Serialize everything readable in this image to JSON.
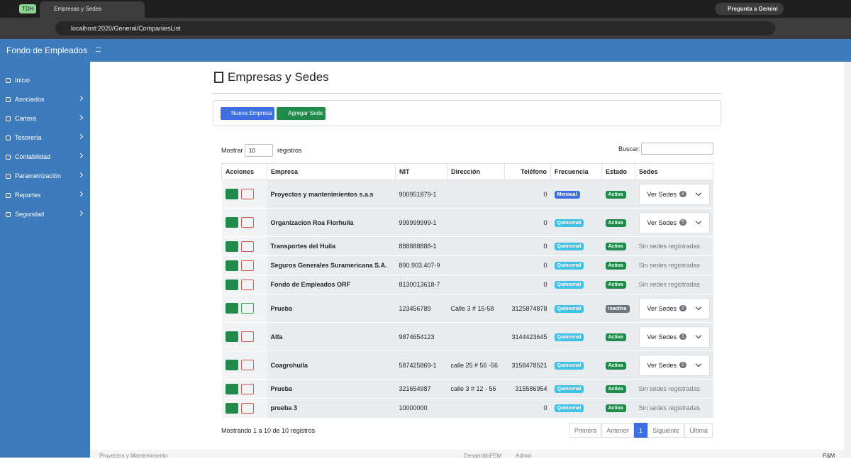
{
  "browser": {
    "tab_group": "TDH",
    "tab_title": "Empresas y Sedes",
    "gemini": "Pregunta a Gemini",
    "url": "localhost:2020/General/CompaniesList"
  },
  "app": {
    "brand": "Fondo de Empleados"
  },
  "sidebar": {
    "items": [
      "Inicio",
      "Asociados",
      "Cartera",
      "Tesorería",
      "Contabilidad",
      "Parametrización",
      "Reportes",
      "Seguridad"
    ]
  },
  "page": {
    "title": "Empresas y Sedes",
    "buttons": [
      "Nueva Empresa",
      "Agregar Sede"
    ],
    "length": {
      "prefix": "Mostrar",
      "value": "10",
      "suffix": "registros"
    },
    "search": "Buscar:"
  },
  "table": {
    "headers": [
      "Acciones",
      "Empresa",
      "NIT",
      "Dirección",
      "Teléfono",
      "Frecuencia",
      "Estado",
      "Sedes"
    ],
    "rows": [
      {
        "empresa": "Proyectos y mantenimientos s.a.s",
        "nit": "900951879-1",
        "telefono": "0",
        "frecuencia": "Mensual",
        "estado": "Activa",
        "sedes": {
          "button": "Ver Sedes",
          "count": "2"
        }
      },
      {
        "empresa": "Organizacion Roa Florhuila",
        "nit": "999999999-1",
        "telefono": "0",
        "frecuencia": "Quincenal",
        "estado": "Activa",
        "sedes": {
          "button": "Ver Sedes",
          "count": "5"
        }
      },
      {
        "empresa": "Transportes del Huila",
        "nit": "888888888-1",
        "telefono": "0",
        "frecuencia": "Quincenal",
        "estado": "Activa",
        "sedes": {
          "text": "Sin sedes registradas"
        }
      },
      {
        "empresa": "Seguros Generales Suramericana S.A.",
        "nit": "890.903.407-9",
        "telefono": "0",
        "frecuencia": "Quincenal",
        "estado": "Activa",
        "sedes": {
          "text": "Sin sedes registradas"
        }
      },
      {
        "empresa": "Fondo de Empleados ORF",
        "nit": "8130013618-7",
        "telefono": "0",
        "frecuencia": "Quincenal",
        "estado": "Activa",
        "sedes": {
          "text": "Sin sedes registradas"
        }
      },
      {
        "empresa": "Prueba",
        "nit": "123456789",
        "direccion": "Calle 3 # 15-58",
        "telefono": "3125874878",
        "frecuencia": "Quincenal",
        "estado": "Inactiva",
        "sedes": {
          "button": "Ver Sedes",
          "count": "2"
        }
      },
      {
        "empresa": "Alfa",
        "nit": "9874654123",
        "telefono": "3144423645",
        "frecuencia": "Quincenal",
        "estado": "Activa",
        "sedes": {
          "button": "Ver Sedes",
          "count": "1"
        }
      },
      {
        "empresa": "Coagrohuila",
        "nit": "587425869-1",
        "direccion": "calle 25 # 56 -56",
        "telefono": "3158478521",
        "frecuencia": "Quincenal",
        "estado": "Activa",
        "sedes": {
          "button": "Ver Sedes",
          "count": "1"
        }
      },
      {
        "empresa": "Prueba",
        "nit": "321654987",
        "direccion": "calle 3 # 12 - 56",
        "telefono": "315586954",
        "frecuencia": "Quincenal",
        "estado": "Activa",
        "sedes": {
          "text": "Sin sedes registradas"
        }
      },
      {
        "empresa": "prueba 3",
        "nit": "10000000",
        "telefono": "0",
        "frecuencia": "Quincenal",
        "estado": "Activa",
        "sedes": {
          "text": "Sin sedes registradas"
        }
      }
    ]
  },
  "info": "Mostrando 1 a 10 de 10 registros",
  "pagination": [
    "Primera",
    "Anterior",
    "1",
    "Siguiente",
    "Última"
  ],
  "footer": {
    "left": "Proyectos y Mantenimiento",
    "user_app": "DesarrolloFEM",
    "user": "Admin",
    "right": "P&M"
  }
}
